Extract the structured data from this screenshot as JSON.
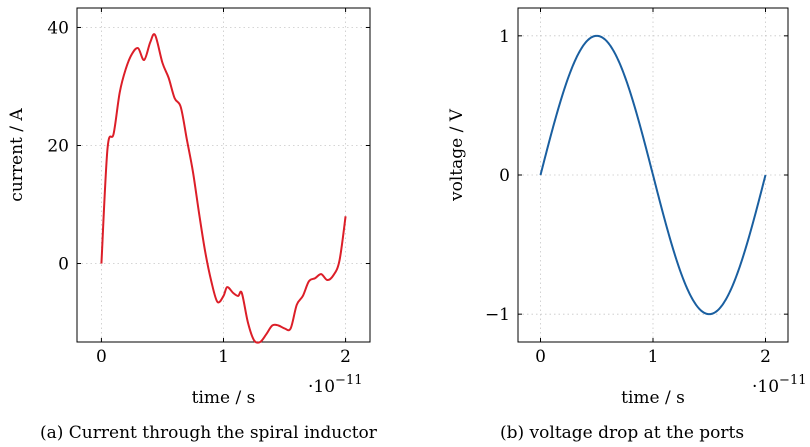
{
  "chart_data": [
    {
      "type": "line",
      "caption": "(a) Current through the spiral inductor",
      "xlabel": "time / s",
      "ylabel": "current / A",
      "x_multiplier": "·10",
      "x_multiplier_exp": "−11",
      "xlim": [
        -0.2,
        2.2
      ],
      "ylim": [
        -13.3,
        43.3
      ],
      "xticks": [
        0,
        1,
        2
      ],
      "xtick_labels": [
        "0",
        "1",
        "2"
      ],
      "yticks": [
        0,
        20,
        40
      ],
      "ytick_labels": [
        "0",
        "20",
        "40"
      ],
      "grid": true,
      "color": "#dc1e28",
      "series": [
        {
          "x": [
            0,
            0.05,
            0.1,
            0.15,
            0.2,
            0.25,
            0.3,
            0.35,
            0.4,
            0.44,
            0.5,
            0.55,
            0.6,
            0.65,
            0.7,
            0.75,
            0.8,
            0.85,
            0.9,
            0.95,
            1.0,
            1.03,
            1.08,
            1.12,
            1.15,
            1.2,
            1.25,
            1.3,
            1.35,
            1.4,
            1.45,
            1.5,
            1.55,
            1.6,
            1.65,
            1.7,
            1.75,
            1.8,
            1.85,
            1.9,
            1.95,
            2.0
          ],
          "y": [
            0,
            19.5,
            22,
            29,
            33,
            35.5,
            36.5,
            34.5,
            37.5,
            38.7,
            34,
            31.5,
            28,
            26.5,
            21,
            15.5,
            8.5,
            2,
            -3,
            -6.5,
            -5.5,
            -4,
            -5,
            -5.5,
            -5,
            -10,
            -13,
            -13.3,
            -12,
            -10.5,
            -10.5,
            -11,
            -11,
            -7,
            -5.5,
            -3,
            -2.5,
            -1.8,
            -2.8,
            -2,
            0.5,
            8
          ]
        }
      ]
    },
    {
      "type": "line",
      "caption": "(b) voltage drop at the ports",
      "xlabel": "time / s",
      "ylabel": "voltage / V",
      "x_multiplier": "·10",
      "x_multiplier_exp": "−11",
      "xlim": [
        -0.2,
        2.2
      ],
      "ylim": [
        -1.2,
        1.2
      ],
      "xticks": [
        0,
        1,
        2
      ],
      "xtick_labels": [
        "0",
        "1",
        "2"
      ],
      "yticks": [
        -1,
        0,
        1
      ],
      "ytick_labels": [
        "−1",
        "0",
        "1"
      ],
      "grid": true,
      "color": "#1a5fa0",
      "series": [
        {
          "function": "sine",
          "x_start": 0,
          "x_end": 2,
          "amplitude": 1,
          "period": 2
        }
      ]
    }
  ]
}
